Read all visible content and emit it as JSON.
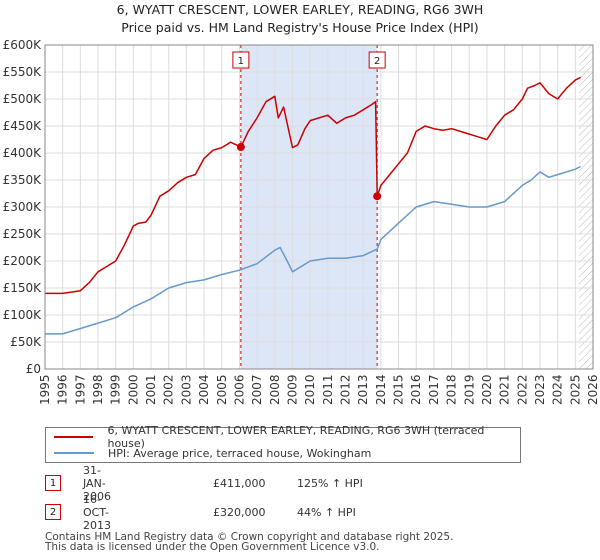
{
  "title_line1": "6, WYATT CRESCENT, LOWER EARLEY, READING, RG6 3WH",
  "title_line2": "Price paid vs. HM Land Registry's House Price Index (HPI)",
  "colors": {
    "property": "#cc0000",
    "hpi": "#6699cc",
    "shade": "#dde6f7",
    "grid": "#dddddd",
    "hatch": "#bbbbbb"
  },
  "chart_data": {
    "type": "line",
    "title": "Price paid vs. HM Land Registry's House Price Index (HPI)",
    "xlabel": "",
    "ylabel": "",
    "xlim": [
      1995,
      2026
    ],
    "ylim": [
      0,
      600000
    ],
    "x_ticks": [
      1995,
      1996,
      1997,
      1998,
      1999,
      2000,
      2001,
      2002,
      2003,
      2004,
      2005,
      2006,
      2007,
      2008,
      2009,
      2010,
      2011,
      2012,
      2013,
      2014,
      2015,
      2016,
      2017,
      2018,
      2019,
      2020,
      2021,
      2022,
      2023,
      2024,
      2025,
      2026
    ],
    "y_ticks": [
      0,
      50000,
      100000,
      150000,
      200000,
      250000,
      300000,
      350000,
      400000,
      450000,
      500000,
      550000,
      600000
    ],
    "y_tick_labels": [
      "£0",
      "£50K",
      "£100K",
      "£150K",
      "£200K",
      "£250K",
      "£300K",
      "£350K",
      "£400K",
      "£450K",
      "£500K",
      "£550K",
      "£600K"
    ],
    "shaded_region": [
      2006.08,
      2013.79
    ],
    "hatched_after": 2025.2,
    "series": [
      {
        "name": "6, WYATT CRESCENT, LOWER EARLEY, READING, RG6 3WH (terraced house)",
        "x": [
          1995,
          1996,
          1997,
          1997.5,
          1998,
          1998.5,
          1999,
          1999.5,
          2000,
          2000.3,
          2000.7,
          2001,
          2001.5,
          2002,
          2002.5,
          2003,
          2003.5,
          2004,
          2004.5,
          2005,
          2005.5,
          2006.08,
          2006.5,
          2007,
          2007.5,
          2008,
          2008.2,
          2008.5,
          2009,
          2009.3,
          2009.7,
          2010,
          2010.5,
          2011,
          2011.5,
          2012,
          2012.5,
          2013,
          2013.5,
          2013.7,
          2013.79,
          2014,
          2014.5,
          2015,
          2015.5,
          2016,
          2016.5,
          2017,
          2017.5,
          2018,
          2018.5,
          2019,
          2019.5,
          2020,
          2020.5,
          2021,
          2021.5,
          2022,
          2022.3,
          2022.7,
          2023,
          2023.5,
          2024,
          2024.5,
          2025,
          2025.3
        ],
        "y": [
          140000,
          140000,
          145000,
          160000,
          180000,
          190000,
          200000,
          230000,
          265000,
          270000,
          272000,
          285000,
          320000,
          330000,
          345000,
          355000,
          360000,
          390000,
          405000,
          410000,
          420000,
          411000,
          440000,
          465000,
          495000,
          505000,
          465000,
          485000,
          410000,
          415000,
          445000,
          460000,
          465000,
          470000,
          455000,
          465000,
          470000,
          480000,
          490000,
          495000,
          320000,
          340000,
          360000,
          380000,
          400000,
          440000,
          450000,
          445000,
          442000,
          445000,
          440000,
          435000,
          430000,
          425000,
          450000,
          470000,
          480000,
          500000,
          520000,
          525000,
          530000,
          510000,
          500000,
          520000,
          535000,
          540000
        ]
      },
      {
        "name": "HPI: Average price, terraced house, Wokingham",
        "x": [
          1995,
          1996,
          1997,
          1998,
          1999,
          2000,
          2001,
          2002,
          2003,
          2004,
          2005,
          2006,
          2007,
          2008,
          2008.3,
          2008.7,
          2009,
          2010,
          2011,
          2012,
          2013,
          2013.79,
          2014,
          2015,
          2016,
          2017,
          2018,
          2019,
          2020,
          2021,
          2022,
          2022.5,
          2023,
          2023.5,
          2024,
          2025,
          2025.3
        ],
        "y": [
          65000,
          65000,
          75000,
          85000,
          95000,
          115000,
          130000,
          150000,
          160000,
          165000,
          175000,
          183000,
          195000,
          220000,
          225000,
          200000,
          180000,
          200000,
          205000,
          205000,
          210000,
          222000,
          240000,
          270000,
          300000,
          310000,
          305000,
          300000,
          300000,
          310000,
          340000,
          350000,
          365000,
          355000,
          360000,
          370000,
          375000
        ]
      }
    ],
    "transactions": [
      {
        "label": "1",
        "x": 2006.08,
        "y": 411000,
        "date": "31-JAN-2006",
        "price": "£411,000",
        "hpi": "125% ↑ HPI"
      },
      {
        "label": "2",
        "x": 2013.79,
        "y": 320000,
        "date": "16-OCT-2013",
        "price": "£320,000",
        "hpi": "44% ↑ HPI"
      }
    ]
  },
  "footer_line1": "Contains HM Land Registry data © Crown copyright and database right 2025.",
  "footer_line2": "This data is licensed under the Open Government Licence v3.0."
}
